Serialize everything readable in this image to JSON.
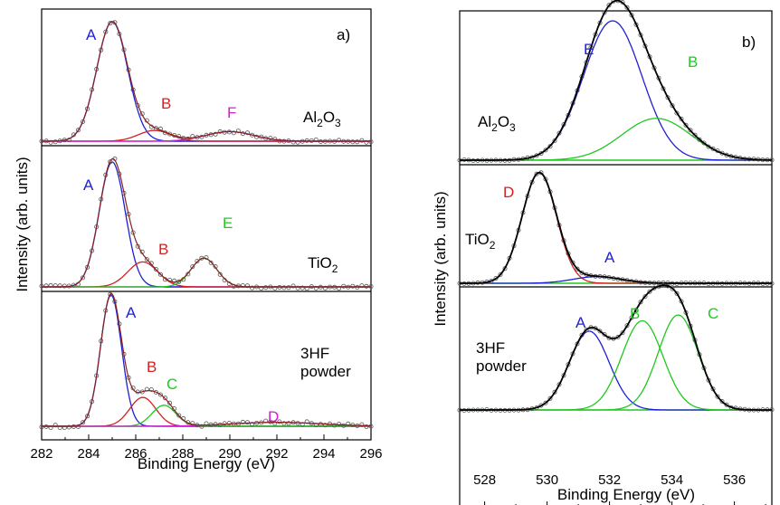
{
  "chart_data": [
    {
      "type": "line",
      "panel_label": "a)",
      "xlabel": "Binding Energy (eV)",
      "ylabel": "Intensity (arb. units)",
      "xlim": [
        282,
        296
      ],
      "x_ticks": [
        "282",
        "284",
        "286",
        "288",
        "290",
        "292",
        "294",
        "296"
      ],
      "colors": {
        "A": "#1f1fd6",
        "B": "#d62020",
        "C": "#20c820",
        "D": "#d020d0",
        "E": "#20c820",
        "F": "#d020d0",
        "fit": "#8a2020",
        "baseline": "#cc33cc",
        "baseline_green": "#20c820"
      },
      "subplots": [
        {
          "sample_label": [
            "Al",
            "2",
            "O",
            "3"
          ],
          "peaks": [
            {
              "label": "A",
              "center": 285.0,
              "height": 1.0,
              "fwhm": 1.55
            },
            {
              "label": "B",
              "center": 286.8,
              "height": 0.09,
              "fwhm": 1.6
            },
            {
              "label": "F",
              "center": 290.0,
              "height": 0.08,
              "fwhm": 2.4
            }
          ]
        },
        {
          "sample_label": [
            "TiO",
            "2"
          ],
          "peaks": [
            {
              "label": "A",
              "center": 285.0,
              "height": 1.0,
              "fwhm": 1.3
            },
            {
              "label": "B",
              "center": 286.3,
              "height": 0.2,
              "fwhm": 1.5
            },
            {
              "label": "E",
              "center": 288.9,
              "height": 0.23,
              "fwhm": 1.3
            }
          ]
        },
        {
          "sample_label": [
            "3HF",
            "powder"
          ],
          "peaks": [
            {
              "label": "A",
              "center": 284.95,
              "height": 1.0,
              "fwhm": 1.05
            },
            {
              "label": "B",
              "center": 286.3,
              "height": 0.22,
              "fwhm": 1.3
            },
            {
              "label": "C",
              "center": 287.2,
              "height": 0.16,
              "fwhm": 1.2
            },
            {
              "label": "D",
              "center": 292.0,
              "height": 0.03,
              "fwhm": 4.5
            }
          ]
        }
      ]
    },
    {
      "type": "line",
      "panel_label": "b)",
      "xlabel": "Binding Energy (eV)",
      "ylabel": "Intensity (arb. units)",
      "xlim": [
        527.2,
        537.2
      ],
      "x_ticks": [
        "528",
        "530",
        "532",
        "534",
        "536"
      ],
      "colors": {
        "A": "#1f1fd6",
        "B": "#20c820",
        "C": "#20c820",
        "D": "#d62020",
        "E": "#1f1fd6",
        "fit": "#000000",
        "baseline": "#20c820"
      },
      "subplots": [
        {
          "sample_label": [
            "Al",
            "2",
            "O",
            "3"
          ],
          "peaks": [
            {
              "label": "E",
              "center": 532.1,
              "height": 1.0,
              "fwhm": 2.2
            },
            {
              "label": "B",
              "center": 533.5,
              "height": 0.3,
              "fwhm": 2.6
            }
          ]
        },
        {
          "sample_label": [
            "TiO",
            "2"
          ],
          "peaks": [
            {
              "label": "D",
              "center": 529.75,
              "height": 1.0,
              "fwhm": 1.3
            },
            {
              "label": "A",
              "center": 531.6,
              "height": 0.06,
              "fwhm": 1.8
            }
          ]
        },
        {
          "sample_label": [
            "3HF",
            "powder"
          ],
          "peaks": [
            {
              "label": "A",
              "center": 531.35,
              "height": 0.68,
              "fwhm": 1.5
            },
            {
              "label": "B",
              "center": 533.05,
              "height": 0.77,
              "fwhm": 1.55
            },
            {
              "label": "C",
              "center": 534.2,
              "height": 0.82,
              "fwhm": 1.5
            }
          ]
        }
      ]
    }
  ],
  "labels": {
    "a_panel": "a)",
    "b_panel": "b)",
    "xlabel_a": "Binding Energy (eV)",
    "xlabel_b": "Binding Energy (eV)",
    "ylabel_a": "Intensity (arb. units)",
    "ylabel_b": "Intensity (arb. units)"
  }
}
